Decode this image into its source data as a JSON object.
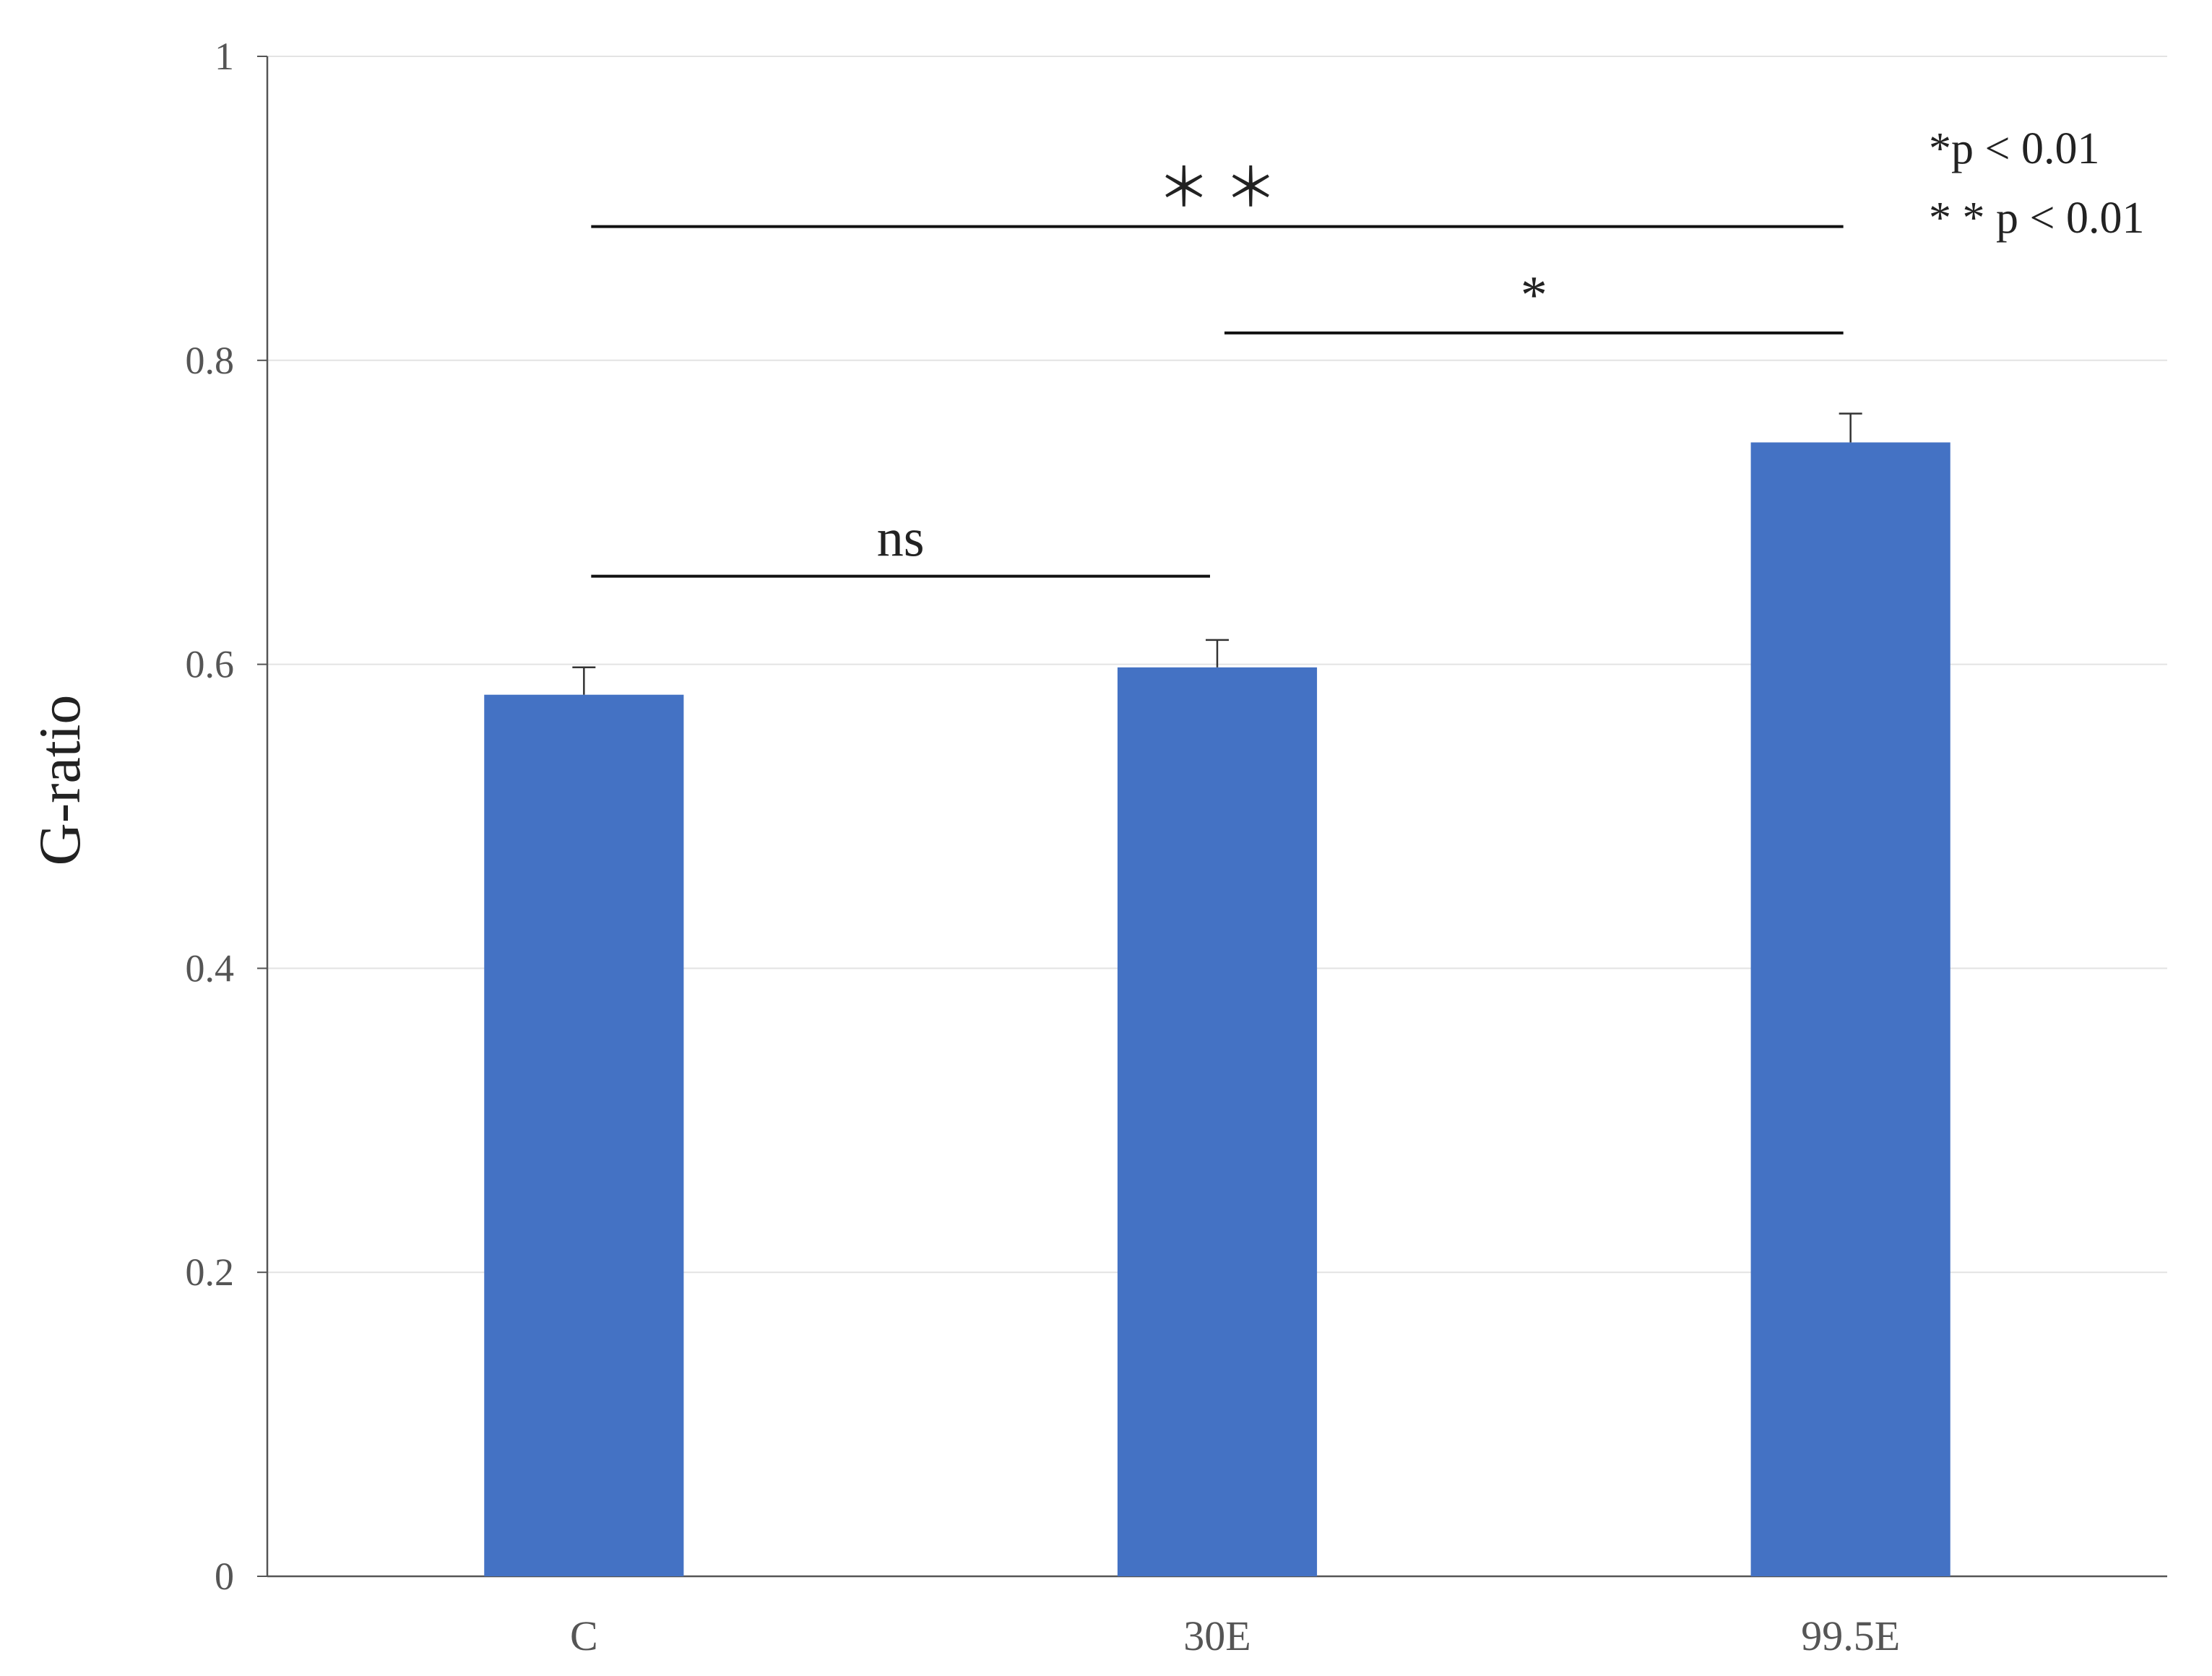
{
  "chart_data": {
    "type": "bar",
    "categories": [
      "C",
      "30E",
      "99.5E"
    ],
    "values": [
      0.58,
      0.598,
      0.746
    ],
    "errors": [
      0.018,
      0.018,
      0.019
    ],
    "title": "",
    "xlabel": "",
    "ylabel": "G-ratio",
    "ylim": [
      0,
      1
    ],
    "yticks": [
      0,
      0.2,
      0.4,
      0.6,
      0.8,
      1
    ],
    "ytick_labels": [
      "0",
      "0.2",
      "0.4",
      "0.6",
      "0.8",
      "1"
    ],
    "grid": true,
    "bar_color": "#4472C4",
    "significance": [
      {
        "from": "C",
        "to": "30E",
        "label": "ns",
        "level": 0.658
      },
      {
        "from": "30E",
        "to": "99.5E",
        "label": "*",
        "level": 0.818
      },
      {
        "from": "C",
        "to": "99.5E",
        "label": "＊ ＊",
        "level": 0.888
      }
    ],
    "notes": [
      "*p < 0.01",
      "* * p < 0.01"
    ]
  }
}
